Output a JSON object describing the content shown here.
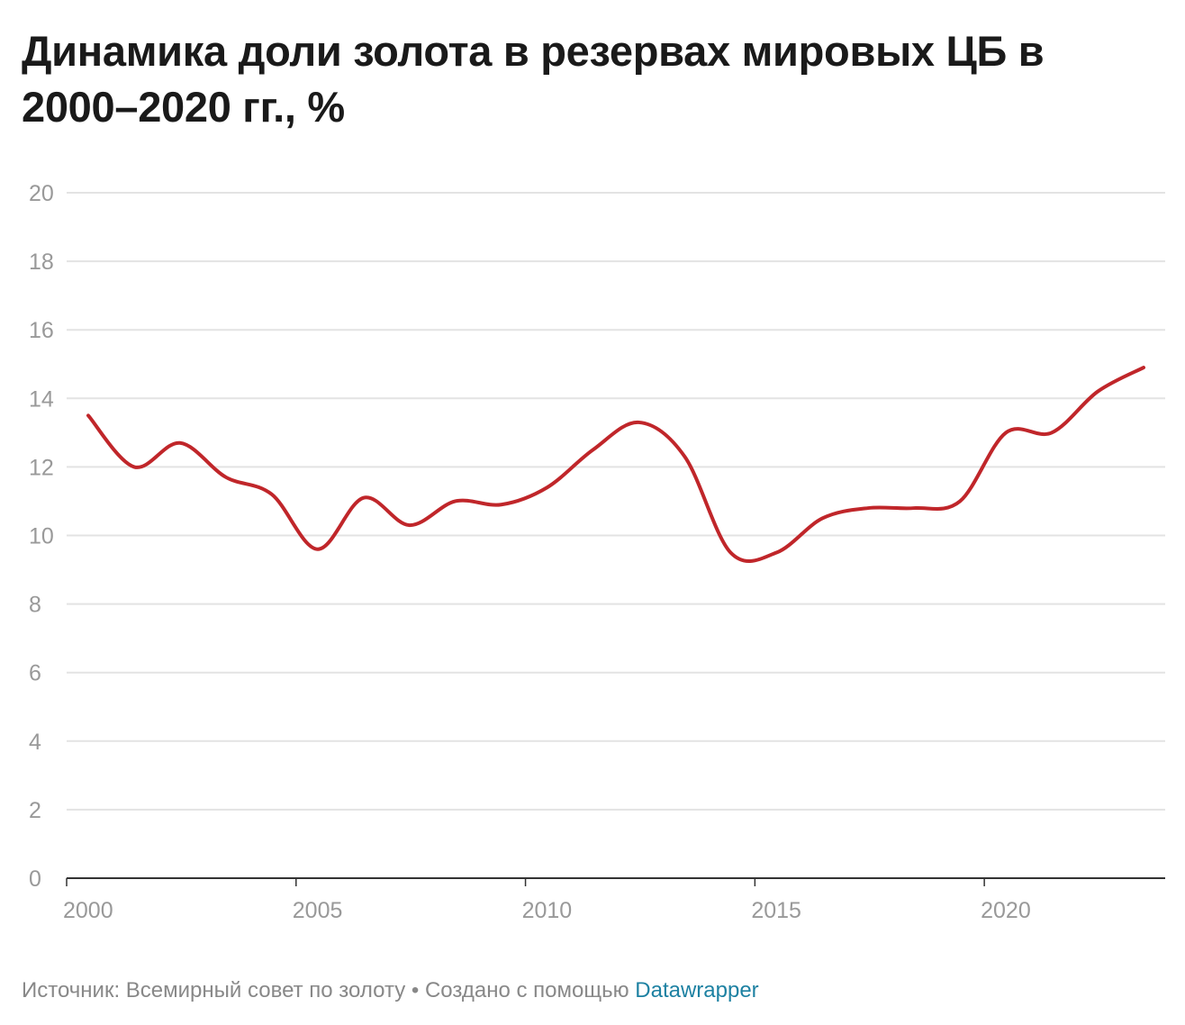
{
  "title": "Динамика доли золота в резервах мировых ЦБ в 2000–2020 гг., %",
  "footer": {
    "source_text": "Источник: Всемирный совет по золоту",
    "separator": " • ",
    "created_text": "Создано с помощью ",
    "tool_link": "Datawrapper"
  },
  "colors": {
    "line": "#c0262a",
    "grid": "#e3e3e3",
    "axis": "#333333",
    "tick_label": "#999999",
    "link": "#1d81a2"
  },
  "chart_data": {
    "type": "line",
    "title": "Динамика доли золота в резервах мировых ЦБ в 2000–2020 гг., %",
    "xlabel": "",
    "ylabel": "",
    "xlim": [
      2000,
      2023.5
    ],
    "ylim": [
      0,
      20
    ],
    "grid": true,
    "x_ticks": [
      2000,
      2005,
      2010,
      2015,
      2020
    ],
    "y_ticks": [
      0,
      2,
      4,
      6,
      8,
      10,
      12,
      14,
      16,
      18,
      20
    ],
    "series": [
      {
        "x": [
          2000,
          2001,
          2002,
          2003,
          2004,
          2005,
          2006,
          2007,
          2008,
          2009,
          2010,
          2011,
          2012,
          2013,
          2014,
          2015,
          2016,
          2017,
          2018,
          2019,
          2020,
          2021,
          2022,
          2023
        ],
        "values": [
          13.5,
          12.0,
          12.7,
          11.7,
          11.2,
          9.6,
          11.1,
          10.3,
          11.0,
          10.9,
          11.4,
          12.5,
          13.3,
          12.3,
          9.5,
          9.5,
          10.5,
          10.8,
          10.8,
          11.0,
          13.0,
          13.0,
          14.2,
          14.9
        ]
      }
    ]
  }
}
